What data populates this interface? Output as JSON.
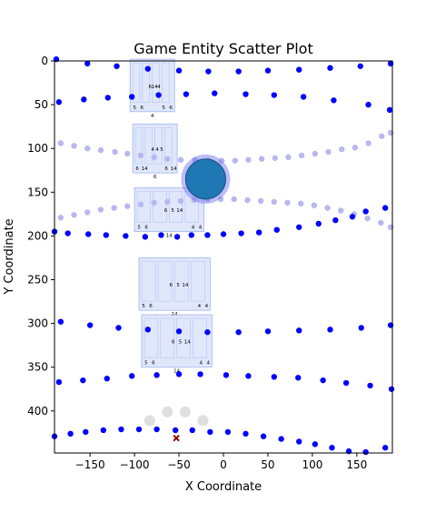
{
  "chart_data": {
    "type": "scatter",
    "title": "Game Entity Scatter Plot",
    "xlabel": "X Coordinate",
    "ylabel": "Y Coordinate",
    "xlim": [
      -190,
      190
    ],
    "ylim": [
      448,
      0
    ],
    "y_inverted": true,
    "grid": false,
    "legend": "none",
    "x_ticks": [
      -150,
      -100,
      -50,
      0,
      50,
      100,
      150
    ],
    "y_ticks": [
      0,
      50,
      100,
      150,
      200,
      250,
      300,
      350,
      400
    ],
    "colors": {
      "dots": "#0000ff",
      "faint_dots": "#b8b8f0",
      "big_circle_fill": "#1f77b4",
      "big_circle_halo": "#6b6bf0",
      "sprite_panels": "#c6d4f7",
      "marker_x": "#8b0000",
      "ghost_dots": "#d9d9d9"
    },
    "series": [
      {
        "role": "entities",
        "points": [
          [
            -188,
            -2
          ],
          [
            -153,
            3
          ],
          [
            -120,
            6
          ],
          [
            -85,
            9
          ],
          [
            -50,
            11
          ],
          [
            -17,
            12
          ],
          [
            17,
            12
          ],
          [
            50,
            11
          ],
          [
            85,
            10
          ],
          [
            120,
            8
          ],
          [
            154,
            6
          ],
          [
            188,
            3
          ],
          [
            -185,
            47
          ],
          [
            -157,
            44
          ],
          [
            -130,
            42
          ],
          [
            -103,
            41
          ],
          [
            -73,
            39
          ],
          [
            -42,
            38
          ],
          [
            -10,
            37
          ],
          [
            25,
            38
          ],
          [
            57,
            39
          ],
          [
            90,
            41
          ],
          [
            124,
            45
          ],
          [
            163,
            50
          ],
          [
            187,
            56
          ],
          [
            -190,
            195
          ],
          [
            -175,
            197
          ],
          [
            -152,
            198
          ],
          [
            -132,
            199
          ],
          [
            -110,
            200
          ],
          [
            -88,
            201
          ],
          [
            -70,
            199
          ],
          [
            -52,
            201
          ],
          [
            -36,
            199
          ],
          [
            -18,
            199
          ],
          [
            0,
            198
          ],
          [
            20,
            197
          ],
          [
            40,
            196
          ],
          [
            60,
            193
          ],
          [
            85,
            190
          ],
          [
            107,
            186
          ],
          [
            126,
            182
          ],
          [
            145,
            178
          ],
          [
            160,
            172
          ],
          [
            182,
            168
          ],
          [
            -183,
            298
          ],
          [
            -150,
            302
          ],
          [
            -118,
            305
          ],
          [
            -85,
            307
          ],
          [
            -50,
            309
          ],
          [
            -18,
            310
          ],
          [
            17,
            310
          ],
          [
            50,
            309
          ],
          [
            85,
            308
          ],
          [
            120,
            307
          ],
          [
            155,
            305
          ],
          [
            188,
            302
          ],
          [
            -185,
            367
          ],
          [
            -158,
            365
          ],
          [
            -131,
            363
          ],
          [
            -103,
            360
          ],
          [
            -75,
            359
          ],
          [
            -50,
            358
          ],
          [
            -26,
            358
          ],
          [
            3,
            359
          ],
          [
            28,
            360
          ],
          [
            57,
            361
          ],
          [
            84,
            362
          ],
          [
            112,
            365
          ],
          [
            138,
            368
          ],
          [
            165,
            371
          ],
          [
            189,
            375
          ],
          [
            -190,
            429
          ],
          [
            -172,
            426
          ],
          [
            -155,
            424
          ],
          [
            -135,
            422
          ],
          [
            -115,
            421
          ],
          [
            -95,
            421
          ],
          [
            -75,
            421
          ],
          [
            -54,
            422
          ],
          [
            -35,
            422
          ],
          [
            -15,
            424
          ],
          [
            5,
            424
          ],
          [
            25,
            426
          ],
          [
            45,
            429
          ],
          [
            65,
            432
          ],
          [
            85,
            435
          ],
          [
            103,
            438
          ],
          [
            122,
            442
          ],
          [
            141,
            446
          ],
          [
            160,
            447
          ],
          [
            182,
            442
          ]
        ]
      },
      {
        "role": "faint entities",
        "points": [
          [
            -183,
            94
          ],
          [
            -168,
            97
          ],
          [
            -153,
            100
          ],
          [
            -138,
            102
          ],
          [
            -122,
            104
          ],
          [
            -108,
            106
          ],
          [
            -93,
            108
          ],
          [
            -78,
            110
          ],
          [
            -63,
            112
          ],
          [
            -48,
            113
          ],
          [
            -32,
            113
          ],
          [
            -17,
            114
          ],
          [
            -2,
            114
          ],
          [
            13,
            114
          ],
          [
            28,
            113
          ],
          [
            43,
            112
          ],
          [
            58,
            111
          ],
          [
            73,
            110
          ],
          [
            88,
            108
          ],
          [
            103,
            106
          ],
          [
            118,
            104
          ],
          [
            133,
            101
          ],
          [
            148,
            99
          ],
          [
            163,
            94
          ],
          [
            178,
            86
          ],
          [
            188,
            82
          ],
          [
            -183,
            179
          ],
          [
            -168,
            176
          ],
          [
            -153,
            173
          ],
          [
            -138,
            170
          ],
          [
            -123,
            168
          ],
          [
            -108,
            166
          ],
          [
            -93,
            164
          ],
          [
            -78,
            162
          ],
          [
            -63,
            161
          ],
          [
            -48,
            160
          ],
          [
            -33,
            159
          ],
          [
            -18,
            158
          ],
          [
            -3,
            158
          ],
          [
            12,
            158
          ],
          [
            27,
            159
          ],
          [
            42,
            160
          ],
          [
            57,
            161
          ],
          [
            72,
            162
          ],
          [
            87,
            163
          ],
          [
            102,
            165
          ],
          [
            117,
            168
          ],
          [
            132,
            171
          ],
          [
            147,
            175
          ],
          [
            162,
            180
          ],
          [
            177,
            185
          ],
          [
            188,
            190
          ]
        ]
      },
      {
        "role": "large entity",
        "points": [
          [
            -20,
            135
          ]
        ],
        "radius": 22
      },
      {
        "role": "ghost entities",
        "points": [
          [
            -83,
            411
          ],
          [
            -63,
            401
          ],
          [
            -43,
            401
          ],
          [
            -23,
            411
          ]
        ]
      },
      {
        "role": "x marker",
        "points": [
          [
            -53,
            431
          ]
        ]
      },
      {
        "role": "sprite panels",
        "boxes": [
          [
            -105,
            -2,
            -55,
            58
          ],
          [
            -102,
            72,
            -52,
            128
          ],
          [
            -100,
            145,
            -22,
            195
          ],
          [
            -95,
            225,
            -15,
            285
          ],
          [
            -92,
            290,
            -13,
            350
          ]
        ],
        "labels": [
          "5",
          "6",
          "6",
          "14",
          "4",
          "4",
          "5",
          "6",
          "6",
          "14",
          "4",
          "4",
          "5",
          "6",
          "6",
          "14",
          "5",
          "6",
          "6",
          "5",
          "14",
          "14",
          "4",
          "4",
          "5",
          "6",
          "6",
          "5",
          "14",
          "14",
          "4",
          "4",
          "5",
          "6",
          "6",
          "5",
          "14",
          "14",
          "4",
          "4"
        ]
      }
    ]
  }
}
